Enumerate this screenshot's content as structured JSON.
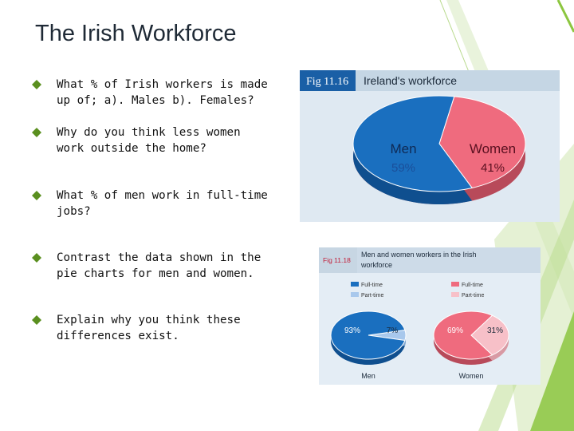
{
  "slide": {
    "title": "The Irish Workforce",
    "bullets": [
      "What % of Irish workers is made up of; a). Males  b). Females?",
      "Why do you think less women work outside the home?",
      "What % of men work in full-time jobs?",
      "Contrast the data shown in the pie charts for men and women.",
      "Explain why you think these differences exist."
    ]
  },
  "colors": {
    "accent_green": "#8cc63f",
    "men_full": "#1a6fbf",
    "men_part": "#a8c8ec",
    "women_full": "#ef6b7e",
    "women_part": "#f7c0c8",
    "header_bar": "#d0dde8",
    "fig_bg": "#e6eef5"
  },
  "chart_data": [
    {
      "type": "pie",
      "figure_label": "Fig 11.16",
      "title": "Ireland's workforce",
      "slices": [
        {
          "name": "Men",
          "value": 59,
          "label": "59%"
        },
        {
          "name": "Women",
          "value": 41,
          "label": "41%"
        }
      ]
    },
    {
      "type": "pie",
      "figure_label": "Fig 11.18",
      "title": "Men and women workers in the Irish workforce",
      "legend": {
        "men": [
          "Full-time",
          "Part-time"
        ],
        "women": [
          "Full-time",
          "Part-time"
        ]
      },
      "pies": [
        {
          "name": "Men",
          "slices": [
            {
              "name": "Full-time",
              "value": 93,
              "label": "93%"
            },
            {
              "name": "Part-time",
              "value": 7,
              "label": "7%"
            }
          ]
        },
        {
          "name": "Women",
          "slices": [
            {
              "name": "Full-time",
              "value": 69,
              "label": "69%"
            },
            {
              "name": "Part-time",
              "value": 31,
              "label": "31%"
            }
          ]
        }
      ]
    }
  ]
}
